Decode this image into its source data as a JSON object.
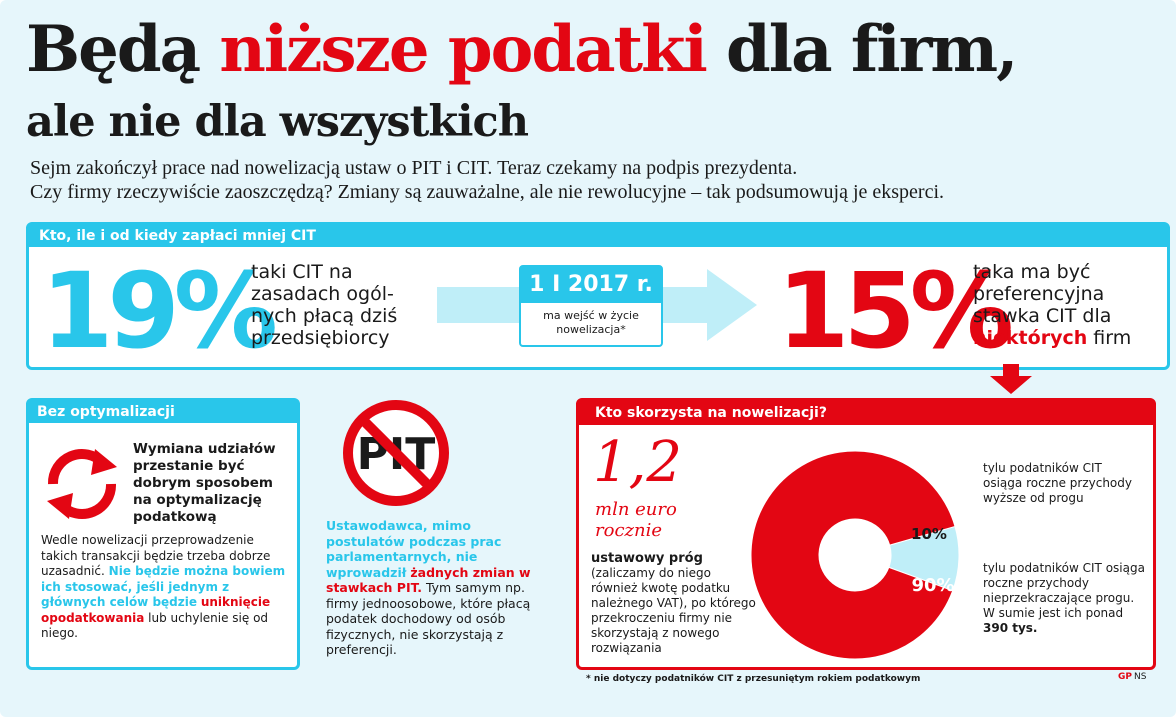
{
  "header": {
    "title_part1": "Będą ",
    "title_highlight": "niższe podatki",
    "title_part2": " dla firm,",
    "subtitle": "ale nie dla wszystkich",
    "lead_line1": "Sejm zakończył prace nad nowelizacją ustaw o PIT i CIT. Teraz czekamy na podpis prezydenta.",
    "lead_line2": "Czy firmy rzeczywiście zaoszczędzą? Zmiany są zauważalne, ale nie rewolucyjne – tak podsumowują je eksperci."
  },
  "cit_band": {
    "heading": "Kto, ile i od kiedy zapłaci mniej CIT",
    "current_rate": "19%",
    "current_text": "taki CIT na zasadach ogól-nych płacą dziś przedsiębiorcy",
    "date": "1 I 2017 r.",
    "date_note": "ma wejść w życie nowelizacja*",
    "new_rate": "15%",
    "new_text_pre": "taka ma być preferencyjna stawka CIT dla ",
    "new_text_highlight": "niektórych",
    "new_text_post": " firm"
  },
  "left_panel": {
    "heading": "Bez optymalizacji",
    "title": "Wymiana udziałów przestanie być dobrym sposobem na optymalizację podatkową",
    "body": "Wedle nowelizacji przeprowadzenie takich transakcji będzie trzeba dobrze uzasadnić.",
    "cyan_text": "Nie będzie można bowiem ich stosować, jeśli jednym z głównych celów będzie",
    "red_text": "uniknięcie opodatkowania",
    "tail": " lub uchylenie się od niego."
  },
  "pit": {
    "sign_text": "PIT",
    "cyan_text": "Ustawodawca, mimo postulatów podczas prac parlamentarnych, nie wprowadził",
    "red_text": "żadnych zmian w stawkach PIT.",
    "tail": " Tym samym np. firmy jednoosobowe, które płacą podatek dochodowy od osób fizycznych, nie skorzystają z preferencji."
  },
  "right_panel": {
    "heading": "Kto skorzysta na nowelizacji?",
    "threshold_value": "1,2",
    "threshold_unit": "mln euro rocznie",
    "threshold_title": "ustawowy próg",
    "threshold_body": "(zaliczamy do niego również kwotę podatku należnego VAT), po którego przekroczeniu firmy nie skorzystają z nowego rozwiązania",
    "note_above": "tylu podatników CIT osiąga roczne przychody wyższe od progu",
    "note_below_pre": "tylu podatników CIT osiąga roczne przychody nieprzekraczające progu. W sumie jest ich ponad ",
    "note_below_bold": "390 tys."
  },
  "chart_data": {
    "type": "pie",
    "title": "Kto skorzysta na nowelizacji?",
    "categories": [
      "przychody wyższe od progu",
      "przychody nieprzekraczające progu"
    ],
    "values": [
      10,
      90
    ],
    "labels": [
      "10%",
      "90%"
    ]
  },
  "footer": {
    "note": "* nie dotyczy podatników CIT z przesuniętym rokiem podatkowym",
    "logo": "GP",
    "author": "NS"
  },
  "colors": {
    "cyan": "#29c6ea",
    "red": "#e30613",
    "light_cyan": "#bfeef8"
  }
}
